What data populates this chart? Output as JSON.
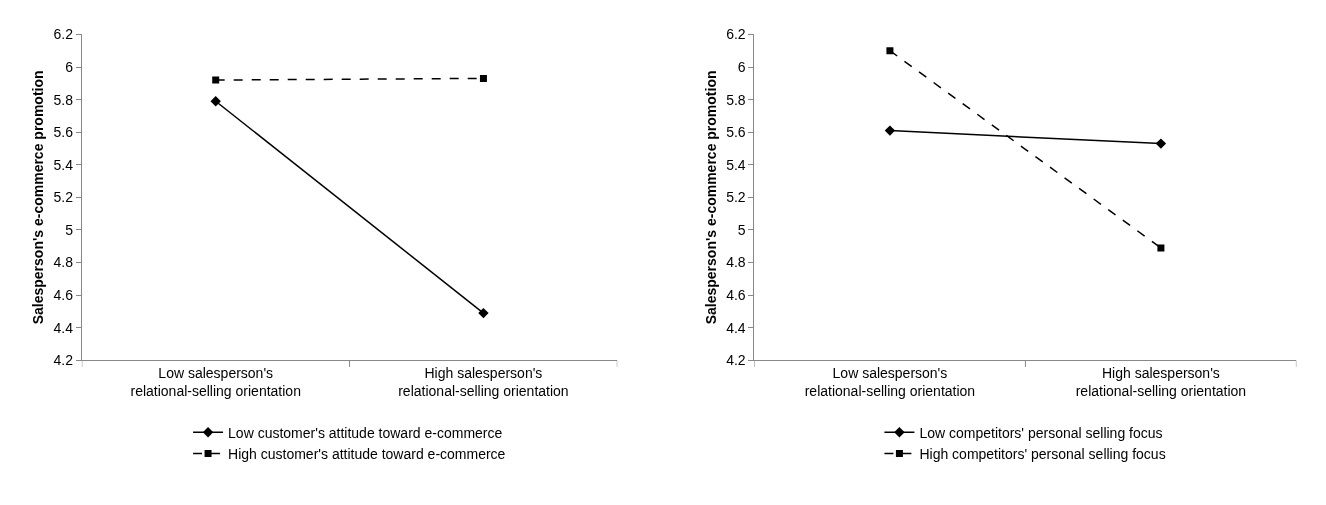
{
  "chart_data": [
    {
      "type": "line",
      "ylabel": "Salesperson's e-commerce promotion",
      "categories": [
        "Low salesperson's relational-selling orientation",
        "High salesperson's relational-selling orientation"
      ],
      "ylim": [
        4.2,
        6.2
      ],
      "yticks": [
        4.2,
        4.4,
        4.6,
        4.8,
        5,
        5.2,
        5.4,
        5.6,
        5.8,
        6,
        6.2
      ],
      "legend": "bottom",
      "series": [
        {
          "name": "Low customer's attitude toward e-commerce",
          "color": "#000000",
          "values": [
            5.79,
            4.49
          ],
          "marker": "diamond",
          "line_style": "solid"
        },
        {
          "name": "High customer's attitude toward e-commerce",
          "color": "#000000",
          "values": [
            5.92,
            5.93
          ],
          "marker": "square",
          "line_style": "dashed"
        }
      ]
    },
    {
      "type": "line",
      "ylabel": "Salesperson's e-commerce promotion",
      "categories": [
        "Low salesperson's relational-selling orientation",
        "High salesperson's relational-selling orientation"
      ],
      "ylim": [
        4.2,
        6.2
      ],
      "yticks": [
        4.2,
        4.4,
        4.6,
        4.8,
        5,
        5.2,
        5.4,
        5.6,
        5.8,
        6,
        6.2
      ],
      "legend": "bottom",
      "series": [
        {
          "name": "Low competitors' personal selling focus",
          "color": "#000000",
          "values": [
            5.61,
            5.53
          ],
          "marker": "diamond",
          "line_style": "solid"
        },
        {
          "name": "High competitors' personal selling focus",
          "color": "#000000",
          "values": [
            6.1,
            4.89
          ],
          "marker": "square",
          "line_style": "dashed"
        }
      ]
    }
  ]
}
